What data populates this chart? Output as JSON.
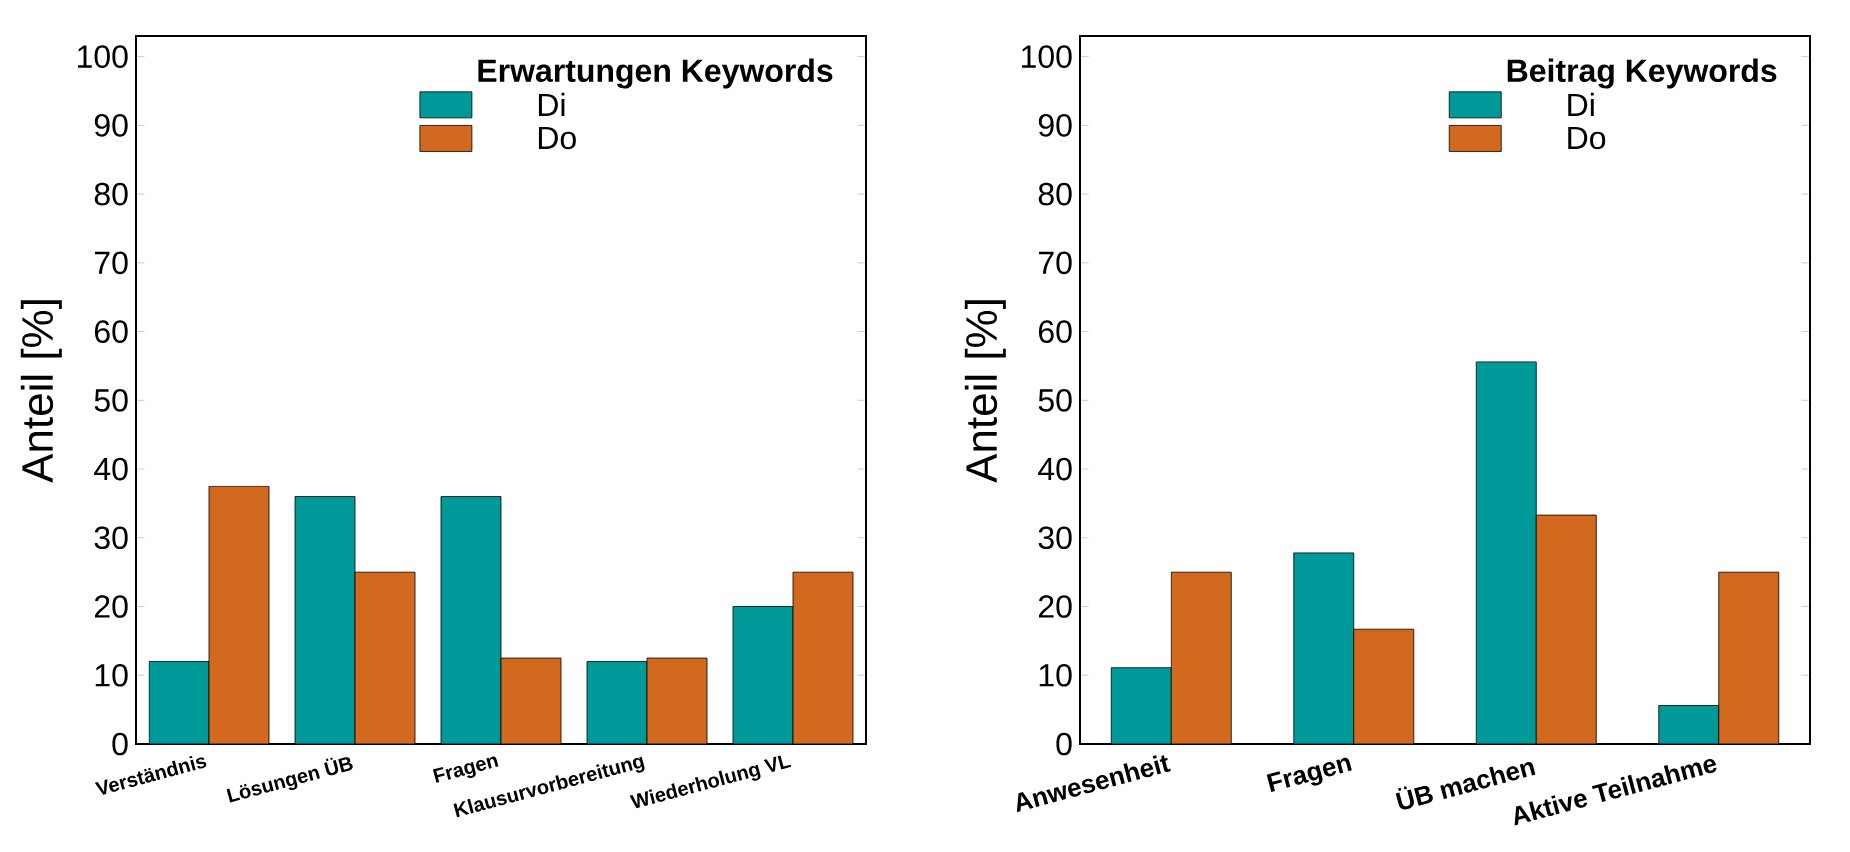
{
  "chart_data": [
    {
      "type": "bar",
      "legend_title": "Erwartungen Keywords",
      "ylabel": "Anteil [%]",
      "categories": [
        "Verständnis",
        "Lösungen ÜB",
        "Fragen",
        "Klausurvorbereitung",
        "Wiederholung VL"
      ],
      "series": [
        {
          "name": "Di",
          "color": "#009999",
          "values": [
            12,
            36,
            36,
            12,
            20
          ]
        },
        {
          "name": "Do",
          "color": "#d2691e",
          "values": [
            37.5,
            25,
            12.5,
            12.5,
            25
          ]
        }
      ],
      "ylim": [
        0,
        103
      ],
      "yticks": [
        0,
        10,
        20,
        30,
        40,
        50,
        60,
        70,
        80,
        90,
        100
      ],
      "legend": "top right"
    },
    {
      "type": "bar",
      "legend_title": "Beitrag Keywords",
      "ylabel": "Anteil [%]",
      "categories": [
        "Anwesenheit",
        "Fragen",
        "ÜB machen",
        "Aktive Teilnahme"
      ],
      "series": [
        {
          "name": "Di",
          "color": "#009999",
          "values": [
            11.1,
            27.8,
            55.6,
            5.6
          ]
        },
        {
          "name": "Do",
          "color": "#d2691e",
          "values": [
            25,
            16.7,
            33.3,
            25
          ]
        }
      ],
      "ylim": [
        0,
        103
      ],
      "yticks": [
        0,
        10,
        20,
        30,
        40,
        50,
        60,
        70,
        80,
        90,
        100
      ],
      "legend": "top right"
    }
  ]
}
